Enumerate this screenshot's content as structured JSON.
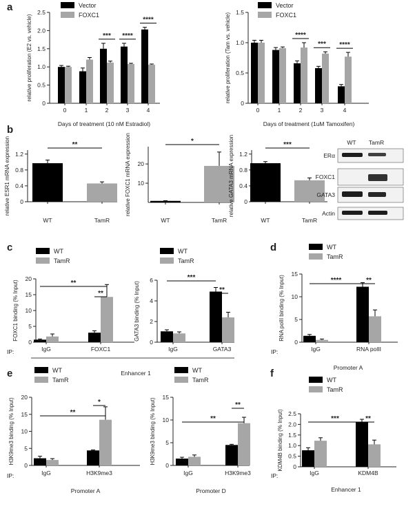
{
  "colors": {
    "wt": "#000000",
    "tamr": "#a6a6a6",
    "vector": "#000000",
    "foxc1": "#a6a6a6"
  },
  "chart_data": [
    {
      "panel": "a",
      "type": "bar",
      "categories": [
        "0",
        "1",
        "2",
        "3",
        "4"
      ],
      "series": [
        {
          "name": "Vector",
          "values": [
            1.0,
            0.88,
            1.5,
            1.56,
            2.03
          ],
          "errors": [
            0.04,
            0.09,
            0.15,
            0.09,
            0.06
          ]
        },
        {
          "name": "FOXC1",
          "values": [
            1.0,
            1.2,
            1.12,
            1.08,
            1.06
          ],
          "errors": [
            0.02,
            0.06,
            0.04,
            0.02,
            0.02
          ]
        }
      ],
      "ylabel": "relative proliferation (E2 vs. vehicle)",
      "xlabel": "Days of treatment (10 nM Estradiol)",
      "ylim": [
        0,
        2.5
      ],
      "yticks": [
        0,
        0.5,
        1.0,
        1.5,
        2.0,
        2.5
      ],
      "ytick_labels": [
        "0",
        "0.5",
        "1.0",
        "1.5",
        "2.0",
        "2.5"
      ],
      "annotations": [
        {
          "category": "2",
          "text": "***"
        },
        {
          "category": "3",
          "text": "****"
        },
        {
          "category": "4",
          "text": "****"
        }
      ]
    },
    {
      "panel": "a",
      "type": "bar",
      "categories": [
        "0",
        "1",
        "2",
        "3",
        "4"
      ],
      "series": [
        {
          "name": "Vector",
          "values": [
            1.0,
            0.88,
            0.66,
            0.58,
            0.28
          ],
          "errors": [
            0.04,
            0.04,
            0.04,
            0.03,
            0.03
          ]
        },
        {
          "name": "FOXC1",
          "values": [
            1.0,
            0.91,
            0.92,
            0.82,
            0.77
          ],
          "errors": [
            0.04,
            0.02,
            0.08,
            0.03,
            0.07
          ]
        }
      ],
      "ylabel": "relative proliferation (Tam vs. vehicle)",
      "xlabel": "Days of treatment (1uM Tamoxifen)",
      "ylim": [
        0,
        1.5
      ],
      "yticks": [
        0,
        0.5,
        1.0,
        1.5
      ],
      "ytick_labels": [
        "0",
        "0.5",
        "1.0",
        "1.5"
      ],
      "annotations": [
        {
          "category": "2",
          "text": "****"
        },
        {
          "category": "3",
          "text": "***"
        },
        {
          "category": "4",
          "text": "****"
        }
      ]
    },
    {
      "panel": "b",
      "type": "bar",
      "categories": [
        "WT",
        "TamR"
      ],
      "series": [
        {
          "name": "expression",
          "values": [
            0.97,
            0.46
          ],
          "errors": [
            0.08,
            0.04
          ]
        }
      ],
      "ylabel": "relative ESR1 mRNA expression",
      "ylim": [
        0,
        1.3
      ],
      "yticks": [
        0,
        0.4,
        0.8,
        1.2
      ],
      "ytick_labels": [
        "0",
        "0.4",
        "0.8",
        "1.2"
      ],
      "annotations": [
        {
          "text": "**",
          "from": "WT",
          "to": "TamR"
        }
      ]
    },
    {
      "panel": "b",
      "type": "bar",
      "categories": [
        "WT",
        "TamR"
      ],
      "series": [
        {
          "name": "expression",
          "values": [
            0.8,
            19
          ],
          "errors": [
            0.1,
            7.2
          ]
        }
      ],
      "ylabel": "relative FOXC1 mRNA expression",
      "ylim": [
        0,
        29
      ],
      "yticks": [
        10,
        20
      ],
      "ytick_labels": [
        "10",
        "20"
      ],
      "annotations": [
        {
          "text": "*",
          "from": "WT",
          "to": "TamR"
        }
      ]
    },
    {
      "panel": "b",
      "type": "bar",
      "categories": [
        "WT",
        "TamR"
      ],
      "series": [
        {
          "name": "expression",
          "values": [
            0.97,
            0.54
          ],
          "errors": [
            0.04,
            0.06
          ]
        }
      ],
      "ylabel": "relative GATA3 mRNA expression",
      "ylim": [
        0,
        1.3
      ],
      "yticks": [
        0,
        0.4,
        0.8,
        1.2
      ],
      "ytick_labels": [
        "0",
        "0.4",
        "0.8",
        "1.2"
      ],
      "annotations": [
        {
          "text": "***",
          "from": "WT",
          "to": "TamR"
        }
      ]
    },
    {
      "panel": "c",
      "type": "bar",
      "categories": [
        "IgG",
        "FOXC1"
      ],
      "series": [
        {
          "name": "WT",
          "values": [
            0.8,
            3.0
          ],
          "errors": [
            0.2,
            0.6
          ]
        },
        {
          "name": "TamR",
          "values": [
            1.8,
            14.3
          ],
          "errors": [
            0.8,
            3.9
          ]
        }
      ],
      "ylabel": "FOXC1 binding (% Input)",
      "xlabel": "Enhancer 1",
      "ylim": [
        0,
        20
      ],
      "yticks": [
        0,
        5,
        10,
        15,
        20
      ],
      "ytick_labels": [
        "0",
        "5",
        "10",
        "15",
        "20"
      ],
      "annotations": [
        {
          "text": "**",
          "from": "IgG WT",
          "to": "FOXC1 TamR"
        },
        {
          "text": "**",
          "from": "FOXC1 WT",
          "to": "FOXC1 TamR"
        }
      ]
    },
    {
      "panel": "c",
      "type": "bar",
      "categories": [
        "IgG",
        "GATA3"
      ],
      "series": [
        {
          "name": "WT",
          "values": [
            1.05,
            4.9
          ],
          "errors": [
            0.15,
            0.4
          ]
        },
        {
          "name": "TamR",
          "values": [
            0.85,
            2.4
          ],
          "errors": [
            0.15,
            0.5
          ]
        }
      ],
      "ylabel": "GATA3 binding (% Input)",
      "xlabel": "Enhancer 1",
      "ylim": [
        0,
        6
      ],
      "yticks": [
        0,
        2,
        4,
        6
      ],
      "ytick_labels": [
        "0",
        "2",
        "4",
        "6"
      ],
      "annotations": [
        {
          "text": "***",
          "from": "IgG WT",
          "to": "GATA3 WT"
        },
        {
          "text": "**",
          "from": "GATA3 WT",
          "to": "GATA3 TamR"
        }
      ]
    },
    {
      "panel": "d",
      "type": "bar",
      "categories": [
        "IgG",
        "RNA polII"
      ],
      "series": [
        {
          "name": "WT",
          "values": [
            1.4,
            12.2
          ],
          "errors": [
            0.3,
            0.9
          ]
        },
        {
          "name": "TamR",
          "values": [
            0.5,
            5.7
          ],
          "errors": [
            0.2,
            1.4
          ]
        }
      ],
      "ylabel": "RNA polII binding (% Input)",
      "xlabel": "Promoter A",
      "ylim": [
        0,
        15
      ],
      "yticks": [
        0,
        5,
        10,
        15
      ],
      "ytick_labels": [
        "0",
        "5",
        "10",
        "15"
      ],
      "annotations": [
        {
          "text": "****",
          "from": "IgG WT",
          "to": "RNA polII WT"
        },
        {
          "text": "**",
          "from": "RNA polII WT",
          "to": "RNA polII TamR"
        }
      ]
    },
    {
      "panel": "e",
      "type": "bar",
      "categories": [
        "IgG",
        "H3K9me3"
      ],
      "series": [
        {
          "name": "WT",
          "values": [
            2.1,
            4.4
          ],
          "errors": [
            0.6,
            0.15
          ]
        },
        {
          "name": "TamR",
          "values": [
            1.6,
            13.4
          ],
          "errors": [
            0.4,
            3.8
          ]
        }
      ],
      "ylabel": "H3K9me3 binding (% Input)",
      "xlabel": "Promoter A",
      "ylim": [
        0,
        20
      ],
      "yticks": [
        0,
        5,
        10,
        15,
        20
      ],
      "ytick_labels": [
        "0",
        "5",
        "10",
        "15",
        "20"
      ],
      "annotations": [
        {
          "text": "**",
          "from": "IgG WT",
          "to": "H3K9me3 TamR"
        },
        {
          "text": "*",
          "from": "H3K9me3 WT",
          "to": "H3K9me3 TamR"
        }
      ]
    },
    {
      "panel": "e",
      "type": "bar",
      "categories": [
        "IgG",
        "H3K9me3"
      ],
      "series": [
        {
          "name": "WT",
          "values": [
            1.5,
            4.5
          ],
          "errors": [
            0.3,
            0.15
          ]
        },
        {
          "name": "TamR",
          "values": [
            1.9,
            9.3
          ],
          "errors": [
            0.4,
            1.3
          ]
        }
      ],
      "ylabel": "H3K9me3 binding (% Input)",
      "xlabel": "Promoter D",
      "ylim": [
        0,
        15
      ],
      "yticks": [
        0,
        5,
        10,
        15
      ],
      "ytick_labels": [
        "0",
        "5",
        "10",
        "15"
      ],
      "annotations": [
        {
          "text": "**",
          "from": "IgG WT",
          "to": "H3K9me3 TamR"
        },
        {
          "text": "**",
          "from": "H3K9me3 WT",
          "to": "H3K9me3 TamR"
        }
      ]
    },
    {
      "panel": "f",
      "type": "bar",
      "categories": [
        "IgG",
        "KDM4B"
      ],
      "series": [
        {
          "name": "WT",
          "values": [
            0.78,
            2.1
          ],
          "errors": [
            0.12,
            0.14
          ]
        },
        {
          "name": "TamR",
          "values": [
            1.23,
            1.06
          ],
          "errors": [
            0.14,
            0.2
          ]
        }
      ],
      "ylabel": "KDM4B binding (% Input)",
      "xlabel": "Enhancer 1",
      "ylim": [
        0,
        2.5
      ],
      "yticks": [
        0,
        0.5,
        1.0,
        1.5,
        2.0,
        2.5
      ],
      "ytick_labels": [
        "0",
        "0.5",
        "1.0",
        "1.5",
        "2.0",
        "2.5"
      ],
      "annotations": [
        {
          "text": "***",
          "from": "IgG WT",
          "to": "KDM4B WT"
        },
        {
          "text": "**",
          "from": "KDM4B WT",
          "to": "KDM4B TamR"
        }
      ]
    }
  ],
  "panel_labels": [
    "a",
    "b",
    "c",
    "d",
    "e",
    "f"
  ],
  "ip_label": "IP:",
  "western_blot": {
    "columns": [
      "WT",
      "TamR"
    ],
    "rows": [
      "ERα",
      "FOXC1",
      "GATA3",
      "Actin"
    ]
  }
}
